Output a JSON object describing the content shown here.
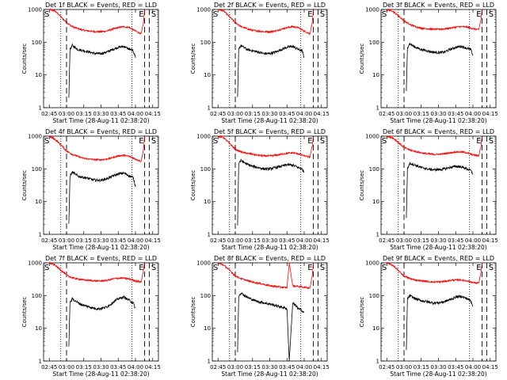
{
  "figure": {
    "panels": [
      {
        "title": "Det 1f BLACK = Events, RED = LLD"
      },
      {
        "title": "Det 2f BLACK = Events, RED = LLD"
      },
      {
        "title": "Det 3f BLACK = Events, RED = LLD"
      },
      {
        "title": "Det 4f BLACK = Events, RED = LLD"
      },
      {
        "title": "Det 5f BLACK = Events, RED = LLD"
      },
      {
        "title": "Det 6f BLACK = Events, RED = LLD"
      },
      {
        "title": "Det 7f BLACK = Events, RED = LLD"
      },
      {
        "title": "Det 8f BLACK = Events, RED = LLD"
      },
      {
        "title": "Det 9f BLACK = Events, RED = LLD"
      }
    ]
  },
  "chart_data": {
    "type": "line",
    "layout": "3x3 grid of small multiples",
    "title_template": "Det Nf BLACK = Events, RED = LLD",
    "xlabel": "Start Time (28-Aug-11 02:38:20)",
    "ylabel": "Counts/sec",
    "yscale": "log",
    "ylim": [
      1,
      1000
    ],
    "yticks": [
      "1",
      "10",
      "100",
      "1000"
    ],
    "xlim": [
      "02:40",
      "04:20"
    ],
    "xticks": [
      "02:45",
      "03:00",
      "03:15",
      "03:30",
      "03:45",
      "04:00",
      "04:15"
    ],
    "series_colors": {
      "events": "#000000",
      "lld": "#ff0000"
    },
    "markers": {
      "S_label": "S",
      "E_label": "E",
      "dotted_lines": [
        "02:55",
        "03:57"
      ],
      "dashed_lines": [
        "03:00",
        "04:08",
        "04:12"
      ],
      "S_positions": [
        "02:40",
        "04:13"
      ],
      "E_position": "04:05"
    },
    "panels": [
      {
        "detector": "1f",
        "events": {
          "x": [
            "03:02",
            "03:03",
            "03:05",
            "03:10",
            "03:15",
            "03:20",
            "03:25",
            "03:30",
            "03:35",
            "03:40",
            "03:45",
            "03:50",
            "03:55",
            "03:58",
            "04:00"
          ],
          "y": [
            2,
            60,
            80,
            60,
            55,
            50,
            45,
            45,
            50,
            60,
            70,
            75,
            60,
            55,
            35
          ]
        },
        "lld": {
          "x": [
            "02:45",
            "02:50",
            "02:55",
            "03:00",
            "03:05",
            "03:10",
            "03:15",
            "03:20",
            "03:25",
            "03:30",
            "03:35",
            "03:40",
            "03:45",
            "03:50",
            "03:55",
            "04:00",
            "04:05",
            "04:07",
            "04:08"
          ],
          "y": [
            1000,
            900,
            600,
            400,
            300,
            260,
            230,
            220,
            210,
            210,
            220,
            250,
            280,
            300,
            280,
            220,
            180,
            400,
            1000
          ]
        }
      },
      {
        "detector": "2f",
        "events": {
          "x": [
            "03:02",
            "03:03",
            "03:05",
            "03:10",
            "03:15",
            "03:20",
            "03:25",
            "03:30",
            "03:35",
            "03:40",
            "03:45",
            "03:50",
            "03:55",
            "03:58",
            "04:00"
          ],
          "y": [
            2,
            60,
            80,
            60,
            55,
            50,
            45,
            45,
            50,
            60,
            70,
            75,
            60,
            55,
            35
          ]
        },
        "lld": {
          "x": [
            "02:45",
            "02:50",
            "02:55",
            "03:00",
            "03:05",
            "03:10",
            "03:15",
            "03:20",
            "03:25",
            "03:30",
            "03:35",
            "03:40",
            "03:45",
            "03:50",
            "03:55",
            "04:00",
            "04:05",
            "04:07",
            "04:08"
          ],
          "y": [
            1000,
            900,
            600,
            400,
            300,
            260,
            230,
            220,
            210,
            210,
            220,
            250,
            280,
            300,
            280,
            220,
            180,
            400,
            1000
          ]
        }
      },
      {
        "detector": "3f",
        "events": {
          "x": [
            "03:02",
            "03:03",
            "03:05",
            "03:10",
            "03:15",
            "03:20",
            "03:25",
            "03:30",
            "03:35",
            "03:40",
            "03:45",
            "03:50",
            "03:55",
            "03:58",
            "04:00"
          ],
          "y": [
            3,
            70,
            90,
            70,
            60,
            55,
            50,
            48,
            50,
            60,
            70,
            75,
            65,
            60,
            40
          ]
        },
        "lld": {
          "x": [
            "02:45",
            "02:50",
            "02:55",
            "03:00",
            "03:05",
            "03:10",
            "03:15",
            "03:20",
            "03:25",
            "03:30",
            "03:35",
            "03:40",
            "03:45",
            "03:50",
            "03:55",
            "04:00",
            "04:05",
            "04:07",
            "04:08"
          ],
          "y": [
            1000,
            900,
            650,
            450,
            350,
            300,
            270,
            260,
            250,
            250,
            255,
            270,
            290,
            300,
            290,
            260,
            240,
            500,
            1000
          ]
        }
      },
      {
        "detector": "4f",
        "events": {
          "x": [
            "03:02",
            "03:03",
            "03:05",
            "03:10",
            "03:15",
            "03:20",
            "03:25",
            "03:30",
            "03:35",
            "03:40",
            "03:45",
            "03:50",
            "03:55",
            "03:58",
            "04:00"
          ],
          "y": [
            2,
            60,
            80,
            60,
            55,
            50,
            45,
            45,
            50,
            60,
            70,
            75,
            60,
            55,
            30
          ]
        },
        "lld": {
          "x": [
            "02:45",
            "02:50",
            "02:55",
            "03:00",
            "03:05",
            "03:10",
            "03:15",
            "03:20",
            "03:25",
            "03:30",
            "03:35",
            "03:40",
            "03:45",
            "03:50",
            "03:55",
            "04:00",
            "04:05",
            "04:07",
            "04:08"
          ],
          "y": [
            1000,
            800,
            550,
            350,
            280,
            240,
            210,
            200,
            190,
            190,
            200,
            220,
            250,
            260,
            240,
            200,
            170,
            400,
            1000
          ]
        }
      },
      {
        "detector": "5f",
        "events": {
          "x": [
            "03:02",
            "03:03",
            "03:05",
            "03:10",
            "03:15",
            "03:20",
            "03:25",
            "03:30",
            "03:35",
            "03:40",
            "03:45",
            "03:50",
            "03:55",
            "03:58",
            "04:00"
          ],
          "y": [
            2,
            150,
            180,
            140,
            120,
            110,
            100,
            100,
            110,
            120,
            135,
            130,
            110,
            100,
            80
          ]
        },
        "lld": {
          "x": [
            "02:45",
            "02:50",
            "02:55",
            "03:00",
            "03:05",
            "03:10",
            "03:15",
            "03:20",
            "03:25",
            "03:30",
            "03:35",
            "03:40",
            "03:45",
            "03:50",
            "03:55",
            "04:00",
            "04:05",
            "04:07",
            "04:08"
          ],
          "y": [
            1000,
            900,
            600,
            400,
            330,
            300,
            280,
            260,
            250,
            250,
            260,
            280,
            300,
            310,
            290,
            250,
            230,
            500,
            1000
          ]
        }
      },
      {
        "detector": "6f",
        "events": {
          "x": [
            "03:02",
            "03:03",
            "03:05",
            "03:10",
            "03:15",
            "03:20",
            "03:25",
            "03:30",
            "03:35",
            "03:40",
            "03:45",
            "03:50",
            "03:55",
            "03:58",
            "04:00"
          ],
          "y": [
            3,
            100,
            150,
            130,
            110,
            100,
            95,
            95,
            100,
            110,
            120,
            115,
            100,
            90,
            70
          ]
        },
        "lld": {
          "x": [
            "02:45",
            "02:50",
            "02:55",
            "03:00",
            "03:05",
            "03:10",
            "03:15",
            "03:20",
            "03:25",
            "03:30",
            "03:35",
            "03:40",
            "03:45",
            "03:50",
            "03:55",
            "04:00",
            "04:05",
            "04:07",
            "04:08"
          ],
          "y": [
            1000,
            900,
            650,
            450,
            380,
            340,
            310,
            290,
            280,
            280,
            290,
            310,
            330,
            330,
            310,
            270,
            250,
            500,
            1000
          ]
        }
      },
      {
        "detector": "7f",
        "events": {
          "x": [
            "03:02",
            "03:03",
            "03:05",
            "03:10",
            "03:15",
            "03:20",
            "03:25",
            "03:30",
            "03:35",
            "03:40",
            "03:45",
            "03:50",
            "03:55",
            "03:58",
            "04:00"
          ],
          "y": [
            3,
            60,
            80,
            60,
            50,
            45,
            40,
            40,
            45,
            60,
            80,
            90,
            70,
            60,
            40
          ]
        },
        "lld": {
          "x": [
            "02:45",
            "02:50",
            "02:55",
            "03:00",
            "03:05",
            "03:10",
            "03:15",
            "03:20",
            "03:25",
            "03:30",
            "03:35",
            "03:40",
            "03:45",
            "03:50",
            "03:55",
            "04:00",
            "04:05",
            "04:07",
            "04:08"
          ],
          "y": [
            1000,
            850,
            600,
            420,
            350,
            320,
            300,
            290,
            280,
            280,
            290,
            320,
            340,
            340,
            320,
            280,
            260,
            600,
            1000
          ]
        }
      },
      {
        "detector": "8f",
        "events": {
          "x": [
            "03:02",
            "03:03",
            "03:05",
            "03:10",
            "03:15",
            "03:20",
            "03:25",
            "03:30",
            "03:35",
            "03:40",
            "03:45",
            "03:47",
            "03:50",
            "03:55",
            "03:58",
            "04:00"
          ],
          "y": [
            2,
            100,
            120,
            90,
            75,
            65,
            60,
            55,
            50,
            45,
            40,
            1,
            60,
            40,
            35,
            30
          ]
        },
        "lld": {
          "x": [
            "02:45",
            "02:50",
            "02:55",
            "03:00",
            "03:05",
            "03:10",
            "03:15",
            "03:20",
            "03:25",
            "03:30",
            "03:35",
            "03:40",
            "03:45",
            "03:47",
            "03:50",
            "03:55",
            "04:00",
            "04:05",
            "04:07",
            "04:08"
          ],
          "y": [
            1000,
            850,
            600,
            400,
            330,
            290,
            260,
            240,
            220,
            200,
            190,
            180,
            175,
            1000,
            200,
            190,
            180,
            170,
            400,
            1000
          ]
        }
      },
      {
        "detector": "9f",
        "events": {
          "x": [
            "03:02",
            "03:03",
            "03:05",
            "03:10",
            "03:15",
            "03:20",
            "03:25",
            "03:30",
            "03:35",
            "03:40",
            "03:45",
            "03:50",
            "03:55",
            "03:58",
            "04:00"
          ],
          "y": [
            2,
            80,
            100,
            80,
            70,
            65,
            60,
            60,
            65,
            75,
            90,
            95,
            80,
            70,
            50
          ]
        },
        "lld": {
          "x": [
            "02:45",
            "02:50",
            "02:55",
            "03:00",
            "03:05",
            "03:10",
            "03:15",
            "03:20",
            "03:25",
            "03:30",
            "03:35",
            "03:40",
            "03:45",
            "03:50",
            "03:55",
            "04:00",
            "04:05",
            "04:07",
            "04:08"
          ],
          "y": [
            1000,
            850,
            580,
            400,
            330,
            300,
            280,
            270,
            260,
            260,
            270,
            290,
            300,
            300,
            280,
            250,
            240,
            500,
            1000
          ]
        }
      }
    ]
  }
}
